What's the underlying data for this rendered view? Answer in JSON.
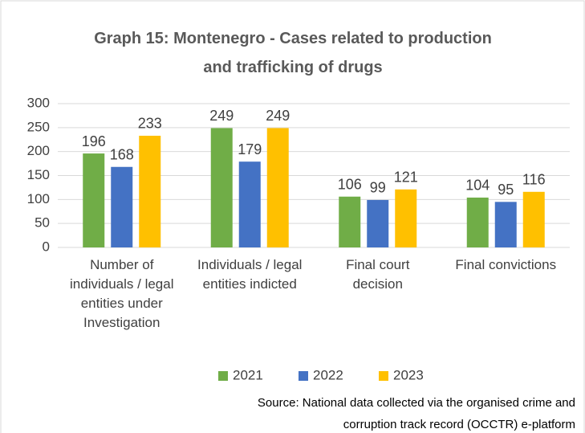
{
  "chart_data": {
    "type": "bar",
    "title": "Graph 15: Montenegro - Cases related to production and trafficking of drugs",
    "categories": [
      "Number of individuals / legal entities under Investigation",
      "Individuals / legal entities indicted",
      "Final court decision",
      "Final convictions"
    ],
    "series": [
      {
        "name": "2021",
        "color": "#70ad47",
        "values": [
          196,
          249,
          106,
          104
        ]
      },
      {
        "name": "2022",
        "color": "#4472c4",
        "values": [
          168,
          179,
          99,
          95
        ]
      },
      {
        "name": "2023",
        "color": "#ffc000",
        "values": [
          233,
          249,
          121,
          116
        ]
      }
    ],
    "ylim": [
      0,
      300
    ],
    "yticks": [
      0,
      50,
      100,
      150,
      200,
      250,
      300
    ],
    "grid": true,
    "legend": "bottom",
    "source": "Source: National data collected via the organised crime and corruption track record (OCCTR) e-platform"
  }
}
